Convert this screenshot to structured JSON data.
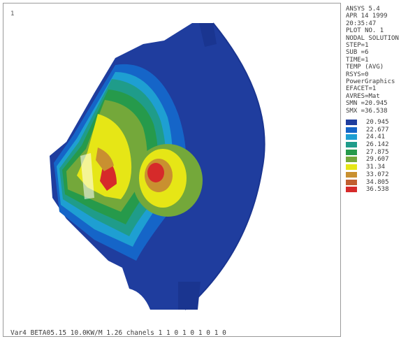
{
  "window_number": "1",
  "info": {
    "product": "ANSYS 5.4",
    "date": "APR 14 1999",
    "time": "20:35:47",
    "plot_no": "PLOT NO.   1",
    "solution": "NODAL SOLUTION",
    "step": "STEP=1",
    "sub": "SUB =6",
    "time_val": "TIME=1",
    "temp": "TEMP     (AVG)",
    "rsys": "RSYS=0",
    "graphics": "PowerGraphics",
    "efacet": "EFACET=1",
    "avres": "AVRES=Mat",
    "smn": "SMN =20.945",
    "smx": "SMX =36.538"
  },
  "legend": [
    {
      "value": "20.945",
      "color": "#1f3d9e"
    },
    {
      "value": "22.677",
      "color": "#1565c8"
    },
    {
      "value": "24.41",
      "color": "#1e9fd2"
    },
    {
      "value": "26.142",
      "color": "#1f9c8a"
    },
    {
      "value": "27.875",
      "color": "#269a4b"
    },
    {
      "value": "29.607",
      "color": "#74a83a"
    },
    {
      "value": "31.34",
      "color": "#e6e616"
    },
    {
      "value": "33.072",
      "color": "#c99030"
    },
    {
      "value": "34.805",
      "color": "#c15f30"
    },
    {
      "value": "36.538",
      "color": "#d62a2a"
    }
  ],
  "footer": "Var4 BETA05.15 10.0KW/M 1.26 chanels 1 1 0 1 0 1 0 1 0"
}
